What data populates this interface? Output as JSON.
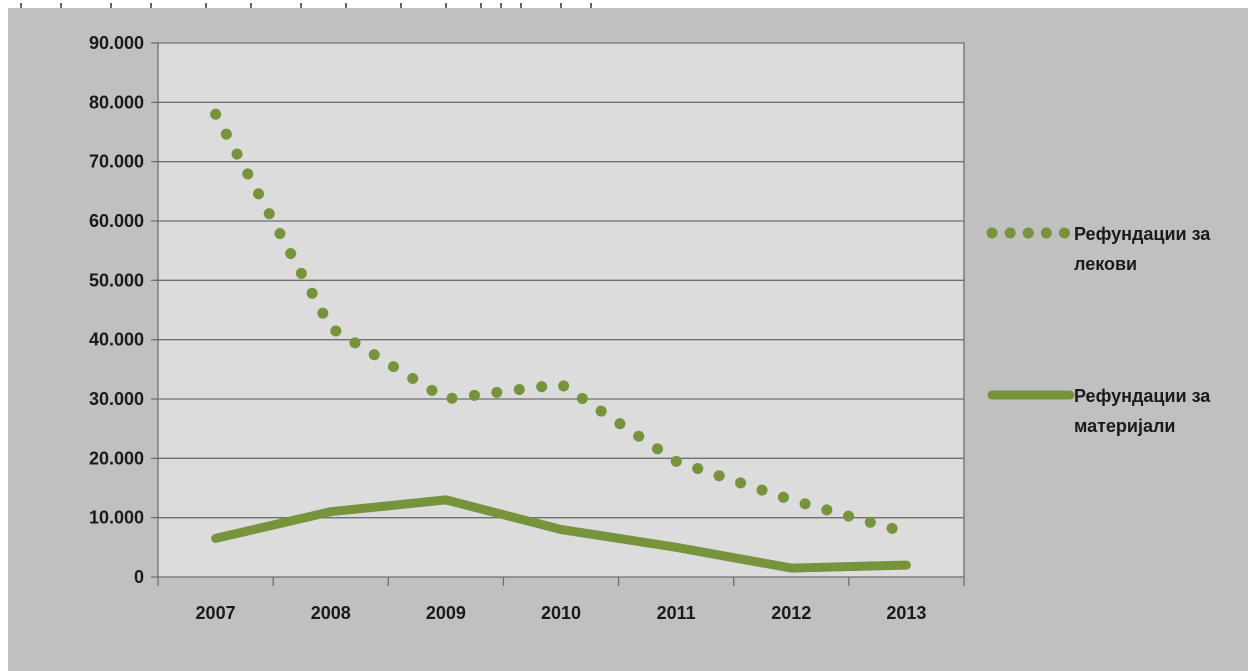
{
  "chart_data": {
    "type": "line",
    "categories": [
      "2007",
      "2008",
      "2009",
      "2010",
      "2011",
      "2012",
      "2013"
    ],
    "ylim": [
      0,
      90000
    ],
    "y_ticks": [
      0,
      10000,
      20000,
      30000,
      40000,
      50000,
      60000,
      70000,
      80000,
      90000
    ],
    "y_tick_labels": [
      "0",
      "10.000",
      "20.000",
      "30.000",
      "40.000",
      "50.000",
      "60.000",
      "70.000",
      "80.000",
      "90.000"
    ],
    "grid": true,
    "legend_position": "right",
    "plot_background": "#dcdcdc",
    "outer_background": "#c0c0c0",
    "series": [
      {
        "name": "Рефундации за лекови",
        "name_lines": [
          "Рефундации за",
          "лекови"
        ],
        "values": [
          78000,
          42000,
          30000,
          32500,
          19500,
          13000,
          7500
        ],
        "color": "#77933c",
        "style": "dotted"
      },
      {
        "name": "Рефундации за материјали",
        "name_lines": [
          "Рефундации за",
          "материјали"
        ],
        "values": [
          6500,
          11000,
          13000,
          8000,
          5000,
          1500,
          2000
        ],
        "color": "#77933c",
        "style": "solid"
      }
    ]
  }
}
